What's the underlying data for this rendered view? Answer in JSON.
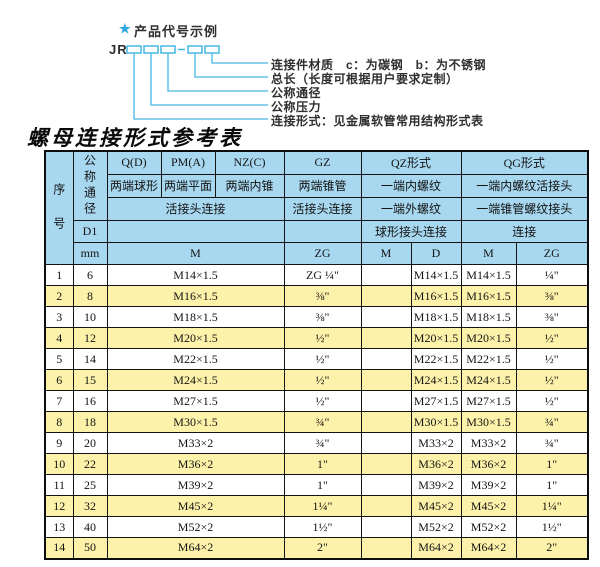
{
  "diagram": {
    "star": "★",
    "title": "产品代号示例",
    "prefix": "JR",
    "labels": [
      "连接件材质　c：为碳钢　b：为不锈钢",
      "总长（长度可根据用户要求定制）",
      "公称通径",
      "公称压力",
      "连接形式：见金属软管常用结构形式表"
    ]
  },
  "table_title": "螺母连接形式参考表",
  "table": {
    "header": {
      "xuhao": "序号",
      "tongjing": "公称通径",
      "d1": "D1",
      "mm": "mm",
      "q_d": "Q(D)",
      "pm_a": "PM(A)",
      "nz_c": "NZ(C)",
      "gz": "GZ",
      "qz": "QZ形式",
      "qg": "QG形式",
      "q_d_sub": "两端球形",
      "pm_a_sub": "两端平面",
      "nz_c_sub": "两端内锥",
      "gz_sub": "两端锥管",
      "qz_sub1": "一端内螺纹",
      "qg_sub1": "一端内螺纹活接头",
      "left_conn": "活接头连接",
      "gz_conn": "活接头连接",
      "qz_sub2": "一端外螺纹",
      "qg_sub2": "一端锥管螺纹接头",
      "qz_conn": "球形接头连接",
      "qg_conn": "连接",
      "m_span": "M",
      "zg": "ZG",
      "qz_m": "M",
      "qz_d": "D",
      "qg_m": "M",
      "qg_zg": "ZG"
    },
    "rows": [
      [
        "1",
        "6",
        "M14×1.5",
        "ZG ¼\"",
        "",
        "M14×1.5",
        "M14×1.5",
        "¼\""
      ],
      [
        "2",
        "8",
        "M16×1.5",
        "⅜\"",
        "",
        "M16×1.5",
        "M16×1.5",
        "⅜\""
      ],
      [
        "3",
        "10",
        "M18×1.5",
        "⅜\"",
        "",
        "M18×1.5",
        "M18×1.5",
        "⅜\""
      ],
      [
        "4",
        "12",
        "M20×1.5",
        "½\"",
        "",
        "M20×1.5",
        "M20×1.5",
        "½\""
      ],
      [
        "5",
        "14",
        "M22×1.5",
        "½\"",
        "",
        "M22×1.5",
        "M22×1.5",
        "½\""
      ],
      [
        "6",
        "15",
        "M24×1.5",
        "½\"",
        "",
        "M24×1.5",
        "M24×1.5",
        "½\""
      ],
      [
        "7",
        "16",
        "M27×1.5",
        "½\"",
        "",
        "M27×1.5",
        "M27×1.5",
        "½\""
      ],
      [
        "8",
        "18",
        "M30×1.5",
        "¾\"",
        "",
        "M30×1.5",
        "M30×1.5",
        "¾\""
      ],
      [
        "9",
        "20",
        "M33×2",
        "¾\"",
        "",
        "M33×2",
        "M33×2",
        "¾\""
      ],
      [
        "10",
        "22",
        "M36×2",
        "1\"",
        "",
        "M36×2",
        "M36×2",
        "1\""
      ],
      [
        "11",
        "25",
        "M39×2",
        "1\"",
        "",
        "M39×2",
        "M39×2",
        "1\""
      ],
      [
        "12",
        "32",
        "M45×2",
        "1¼\"",
        "",
        "M45×2",
        "M45×2",
        "1¼\""
      ],
      [
        "13",
        "40",
        "M52×2",
        "1½\"",
        "",
        "M52×2",
        "M52×2",
        "1½\""
      ],
      [
        "14",
        "50",
        "M64×2",
        "2\"",
        "",
        "M64×2",
        "M64×2",
        "2\""
      ]
    ]
  },
  "colors": {
    "header_bg": "#a8d8f0",
    "row_alt_bg": "#fdf2aa",
    "border": "#141414",
    "accent_blue": "#45b8e4",
    "text": "#2f2f2f"
  }
}
